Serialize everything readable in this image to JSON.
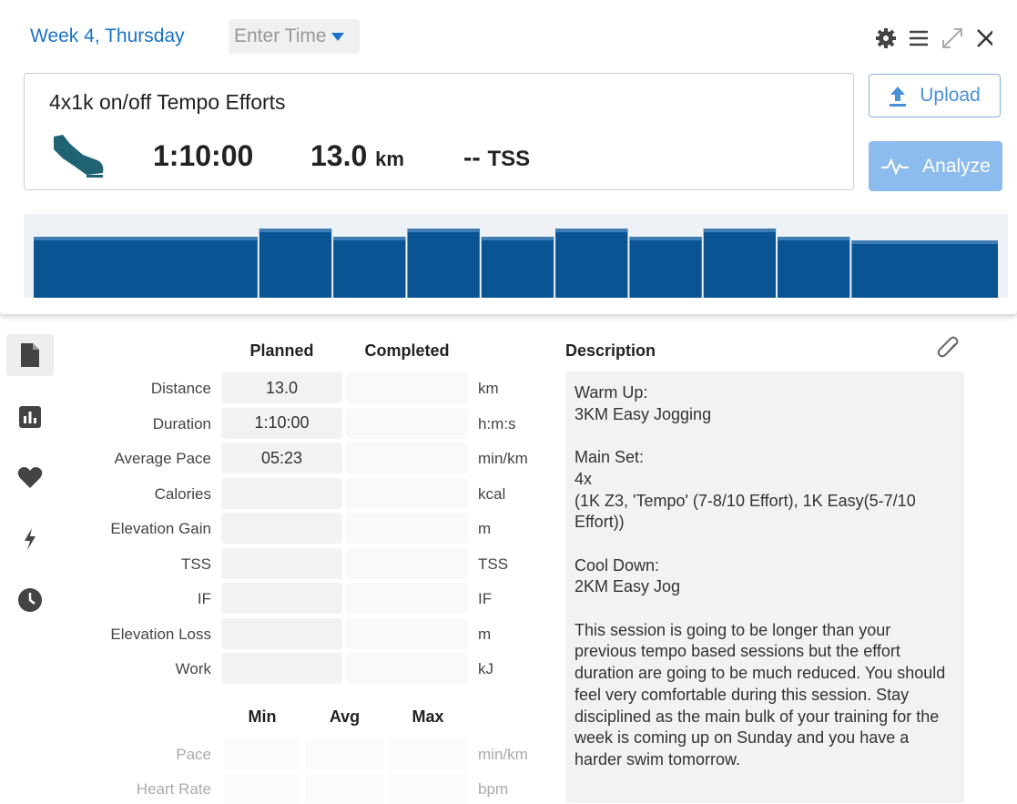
{
  "header": {
    "title": "Week 4, Thursday",
    "time_placeholder": "Enter Time"
  },
  "summary": {
    "workout_title": "4x1k on/off Tempo Efforts",
    "duration": "1:10:00",
    "distance": "13.0",
    "distance_unit": "km",
    "tss": "--",
    "tss_unit": "TSS"
  },
  "buttons": {
    "upload": "Upload",
    "analyze": "Analyze"
  },
  "profile": {
    "segments": [
      {
        "duration": 16,
        "intensity": 67
      },
      {
        "duration": 5.25,
        "intensity": 76
      },
      {
        "duration": 5.25,
        "intensity": 67
      },
      {
        "duration": 5.25,
        "intensity": 76
      },
      {
        "duration": 5.25,
        "intensity": 67
      },
      {
        "duration": 5.25,
        "intensity": 76
      },
      {
        "duration": 5.25,
        "intensity": 67
      },
      {
        "duration": 5.25,
        "intensity": 76
      },
      {
        "duration": 5.25,
        "intensity": 67
      },
      {
        "duration": 10.5,
        "intensity": 63
      }
    ]
  },
  "metrics": {
    "columns": [
      "Planned",
      "Completed"
    ],
    "rows": [
      {
        "label": "Distance",
        "planned": "13.0",
        "unit": "km"
      },
      {
        "label": "Duration",
        "planned": "1:10:00",
        "unit": "h:m:s"
      },
      {
        "label": "Average Pace",
        "planned": "05:23",
        "unit": "min/km"
      },
      {
        "label": "Calories",
        "unit": "kcal"
      },
      {
        "label": "Elevation Gain",
        "unit": "m"
      },
      {
        "label": "TSS",
        "unit": "TSS"
      },
      {
        "label": "IF",
        "unit": "IF"
      },
      {
        "label": "Elevation Loss",
        "unit": "m"
      },
      {
        "label": "Work",
        "unit": "kJ"
      }
    ]
  },
  "ranges": {
    "columns": [
      "Min",
      "Avg",
      "Max"
    ],
    "rows": [
      {
        "label": "Pace",
        "unit": "min/km"
      },
      {
        "label": "Heart Rate",
        "unit": "bpm"
      }
    ]
  },
  "description": {
    "heading": "Description",
    "paragraphs": [
      [
        "Warm Up:",
        "3KM Easy Jogging"
      ],
      [
        "Main Set:",
        "4x",
        "(1K Z3, 'Tempo' (7-8/10 Effort), 1K Easy(5-7/10 Effort))"
      ],
      [
        "Cool Down:",
        "2KM Easy Jog"
      ],
      [
        "This session is going to be longer than your previous tempo based sessions but the effort duration are going to be much reduced. You should feel very comfortable during this session. Stay disciplined as the main bulk of your training for the week is coming up on Sunday and you have a harder swim tomorrow."
      ]
    ]
  }
}
